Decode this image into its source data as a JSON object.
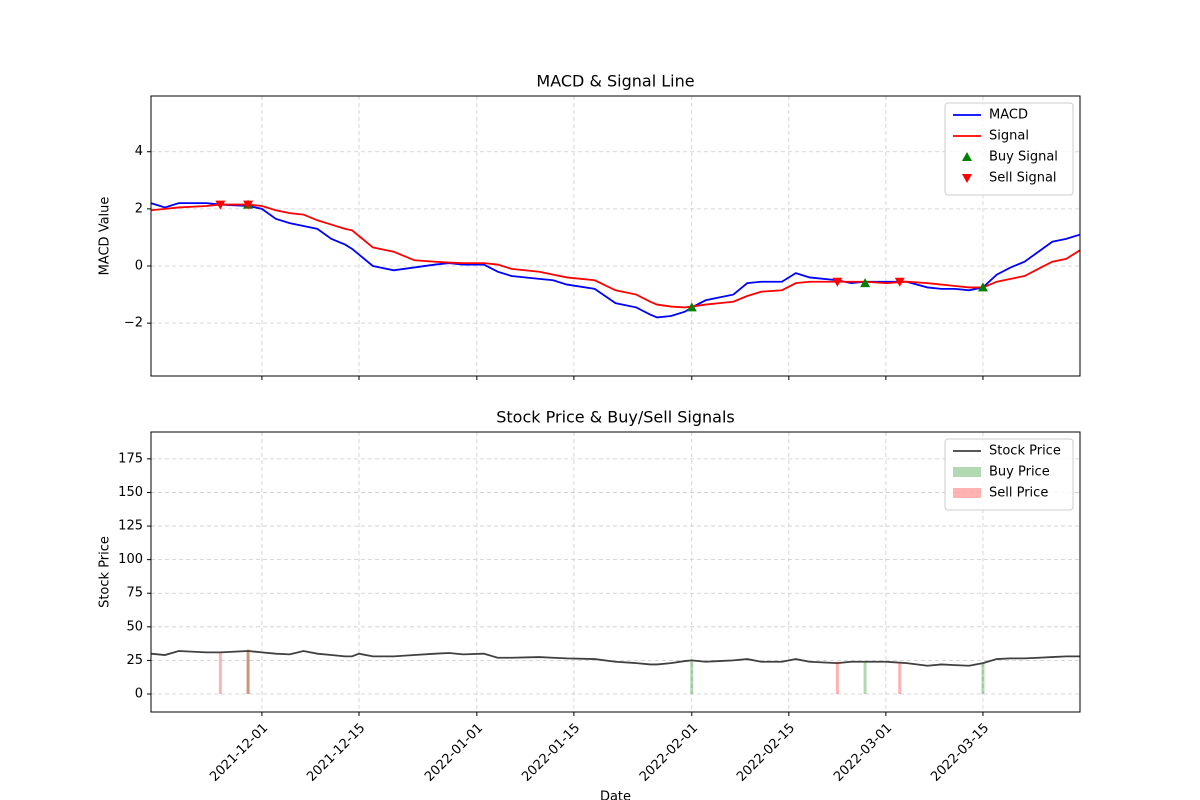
{
  "chart_data": [
    {
      "type": "line",
      "title": "MACD & Signal Line",
      "ylabel": "MACD Value",
      "x": [
        "2021-11-15",
        "2021-11-17",
        "2021-11-19",
        "2021-11-23",
        "2021-11-25",
        "2021-11-29",
        "2021-12-01",
        "2021-12-03",
        "2021-12-05",
        "2021-12-07",
        "2021-12-09",
        "2021-12-11",
        "2021-12-13",
        "2021-12-14",
        "2021-12-15",
        "2021-12-17",
        "2021-12-20",
        "2021-12-23",
        "2021-12-26",
        "2021-12-28",
        "2021-12-30",
        "2022-01-02",
        "2022-01-04",
        "2022-01-06",
        "2022-01-10",
        "2022-01-12",
        "2022-01-14",
        "2022-01-18",
        "2022-01-21",
        "2022-01-24",
        "2022-01-26",
        "2022-01-27",
        "2022-01-29",
        "2022-01-31",
        "2022-02-01",
        "2022-02-03",
        "2022-02-05",
        "2022-02-07",
        "2022-02-09",
        "2022-02-11",
        "2022-02-14",
        "2022-02-16",
        "2022-02-18",
        "2022-02-22",
        "2022-02-24",
        "2022-02-26",
        "2022-03-01",
        "2022-03-04",
        "2022-03-07",
        "2022-03-09",
        "2022-03-11",
        "2022-03-13",
        "2022-03-15",
        "2022-03-17",
        "2022-03-19",
        "2022-03-21",
        "2022-03-23",
        "2022-03-25",
        "2022-03-27",
        "2022-03-29"
      ],
      "series": [
        {
          "name": "MACD",
          "type": "line",
          "color": "#0000ff",
          "values": [
            2.2,
            2.05,
            2.2,
            2.2,
            2.15,
            2.1,
            2.0,
            1.65,
            1.5,
            1.4,
            1.3,
            0.95,
            0.75,
            0.6,
            0.4,
            0.0,
            -0.15,
            -0.05,
            0.05,
            0.1,
            0.05,
            0.05,
            -0.2,
            -0.35,
            -0.45,
            -0.5,
            -0.65,
            -0.8,
            -1.3,
            -1.45,
            -1.7,
            -1.8,
            -1.75,
            -1.6,
            -1.45,
            -1.2,
            -1.1,
            -1.0,
            -0.6,
            -0.55,
            -0.55,
            -0.25,
            -0.4,
            -0.5,
            -0.6,
            -0.55,
            -0.55,
            -0.55,
            -0.75,
            -0.8,
            -0.8,
            -0.85,
            -0.75,
            -0.3,
            -0.05,
            0.15,
            0.5,
            0.85,
            0.95,
            1.1
          ]
        },
        {
          "name": "Signal",
          "type": "line",
          "color": "#ff0000",
          "values": [
            1.95,
            2.0,
            2.05,
            2.1,
            2.15,
            2.15,
            2.1,
            1.95,
            1.85,
            1.8,
            1.6,
            1.45,
            1.3,
            1.25,
            1.05,
            0.65,
            0.5,
            0.2,
            0.15,
            0.12,
            0.1,
            0.1,
            0.05,
            -0.1,
            -0.2,
            -0.3,
            -0.4,
            -0.5,
            -0.85,
            -1.0,
            -1.25,
            -1.35,
            -1.42,
            -1.45,
            -1.42,
            -1.35,
            -1.3,
            -1.25,
            -1.05,
            -0.9,
            -0.85,
            -0.6,
            -0.55,
            -0.55,
            -0.55,
            -0.55,
            -0.6,
            -0.55,
            -0.6,
            -0.65,
            -0.7,
            -0.75,
            -0.75,
            -0.55,
            -0.45,
            -0.35,
            -0.1,
            0.15,
            0.25,
            0.55
          ]
        },
        {
          "name": "Buy Signal",
          "type": "scatter",
          "marker": "^",
          "color": "#008000",
          "x": [
            "2021-11-29",
            "2022-02-01",
            "2022-02-26",
            "2022-03-15"
          ],
          "values": [
            2.15,
            -1.45,
            -0.6,
            -0.75
          ]
        },
        {
          "name": "Sell Signal",
          "type": "scatter",
          "marker": "v",
          "color": "#ff0000",
          "x": [
            "2021-11-25",
            "2021-11-29",
            "2022-02-22",
            "2022-03-03"
          ],
          "values": [
            2.15,
            2.15,
            -0.55,
            -0.55
          ]
        }
      ],
      "xlim": [
        "2021-11-15",
        "2022-03-29"
      ],
      "xticks": [
        "2021-12-01",
        "2021-12-15",
        "2022-01-01",
        "2022-01-15",
        "2022-02-01",
        "2022-02-15",
        "2022-03-01",
        "2022-03-15"
      ],
      "ylim": [
        -3.85,
        5.95
      ],
      "yticks": [
        {
          "value": -2,
          "label": "−2"
        },
        0,
        2,
        4
      ],
      "grid": true,
      "legend": "upper right"
    },
    {
      "type": "line",
      "title": "Stock Price & Buy/Sell Signals",
      "ylabel": "Stock Price",
      "xlabel": "Date",
      "x": [
        "2021-11-15",
        "2021-11-17",
        "2021-11-19",
        "2021-11-23",
        "2021-11-25",
        "2021-11-29",
        "2021-12-01",
        "2021-12-03",
        "2021-12-05",
        "2021-12-07",
        "2021-12-09",
        "2021-12-11",
        "2021-12-13",
        "2021-12-14",
        "2021-12-15",
        "2021-12-17",
        "2021-12-20",
        "2021-12-23",
        "2021-12-26",
        "2021-12-28",
        "2021-12-30",
        "2022-01-02",
        "2022-01-04",
        "2022-01-06",
        "2022-01-10",
        "2022-01-12",
        "2022-01-14",
        "2022-01-18",
        "2022-01-21",
        "2022-01-24",
        "2022-01-26",
        "2022-01-27",
        "2022-01-29",
        "2022-01-31",
        "2022-02-01",
        "2022-02-03",
        "2022-02-05",
        "2022-02-07",
        "2022-02-09",
        "2022-02-11",
        "2022-02-14",
        "2022-02-16",
        "2022-02-18",
        "2022-02-22",
        "2022-02-24",
        "2022-02-26",
        "2022-03-01",
        "2022-03-04",
        "2022-03-07",
        "2022-03-09",
        "2022-03-11",
        "2022-03-13",
        "2022-03-15",
        "2022-03-17",
        "2022-03-19",
        "2022-03-21",
        "2022-03-23",
        "2022-03-25",
        "2022-03-27",
        "2022-03-29"
      ],
      "series": [
        {
          "name": "Stock Price",
          "type": "line",
          "color": "#404040",
          "values": [
            30,
            29,
            32,
            31,
            31,
            32,
            31,
            30,
            29.5,
            32,
            30,
            29,
            28,
            28,
            30,
            28,
            28,
            29,
            30,
            30.5,
            29.5,
            30,
            27,
            27,
            27.5,
            27,
            26.5,
            26,
            24,
            23,
            22,
            22,
            23,
            24.5,
            25,
            24,
            24.5,
            25,
            26,
            24,
            24,
            26,
            24,
            23,
            24,
            24,
            24,
            23,
            21,
            22,
            21.5,
            21,
            23,
            26,
            26.5,
            26.5,
            27,
            27.5,
            28,
            28
          ]
        },
        {
          "name": "Buy Price",
          "type": "bar",
          "color": "#008000",
          "alpha": 0.3,
          "x": [
            "2021-11-29",
            "2022-02-01",
            "2022-02-26",
            "2022-03-15"
          ],
          "values": [
            33,
            25,
            24,
            23
          ]
        },
        {
          "name": "Sell Price",
          "type": "bar",
          "color": "#ff0000",
          "alpha": 0.3,
          "x": [
            "2021-11-25",
            "2021-11-29",
            "2022-02-22",
            "2022-03-03"
          ],
          "values": [
            31,
            33,
            24,
            23
          ]
        }
      ],
      "xlim": [
        "2021-11-15",
        "2022-03-29"
      ],
      "xticks": [
        "2021-12-01",
        "2021-12-15",
        "2022-01-01",
        "2022-01-15",
        "2022-02-01",
        "2022-02-15",
        "2022-03-01",
        "2022-03-15"
      ],
      "ylim": [
        -13.4,
        195
      ],
      "yticks": [
        0,
        25,
        50,
        75,
        100,
        125,
        150,
        175
      ],
      "grid": true,
      "legend": "upper right"
    }
  ]
}
